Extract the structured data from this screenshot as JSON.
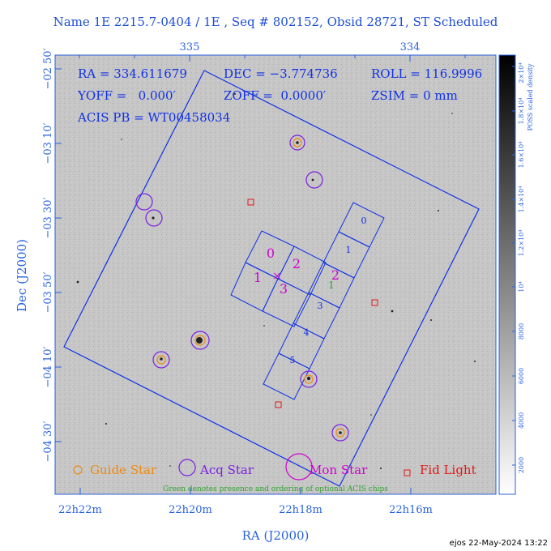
{
  "header": {
    "title": "Name 1E 2215.7-0404 / 1E , Seq # 802152, Obsid 28721, ST Scheduled"
  },
  "info": {
    "ra": "RA = 334.611679",
    "dec": "DEC = −3.774736",
    "roll": "ROLL = 116.9996",
    "yoff": "YOFF =   0.000′",
    "zoff": "ZOFF =  0.0000′",
    "zsim": "ZSIM = 0 mm",
    "acis": "ACIS PB = WT00458034"
  },
  "axes": {
    "top_ticks": [
      "335",
      "334"
    ],
    "left_ticks": [
      "−02 50′",
      "−03 10′",
      "−03 30′",
      "−03 50′",
      "−04 10′",
      "−04 30′"
    ],
    "bottom_ticks": [
      "22h22m",
      "22h20m",
      "22h18m",
      "22h16m"
    ],
    "xlabel": "RA (J2000)",
    "ylabel": "Dec (J2000)"
  },
  "colorbar": {
    "label": "POSS scaled density",
    "ticks": [
      "2000",
      "4000",
      "6000",
      "8000",
      "10⁴",
      "1.2×10⁴",
      "1.4×10⁴",
      "1.6×10⁴",
      "1.8×10⁴",
      "2×10⁴"
    ]
  },
  "chips": {
    "imaging": [
      "0",
      "1",
      "2",
      "3"
    ],
    "spectroscopy": [
      "0",
      "1",
      "2",
      "3",
      "4",
      "5"
    ],
    "optional_marker": "1"
  },
  "legend": {
    "guide": "Guide Star",
    "acq": "Acq Star",
    "mon": "Mon Star",
    "fid": "Fid Light",
    "note": "Green denotes presence and ordering of optional ACIS chips"
  },
  "footer": {
    "stamp": "ejos 22-May-2024 13:22"
  },
  "colors": {
    "axis_blue": "#2a62e0",
    "field_blue": "#1030e8",
    "chip_magenta": "#d000d0",
    "acq_purple": "#7a1fe0",
    "guide_orange": "#f08a10",
    "fid_red": "#e01818",
    "optional_green": "#30a030"
  }
}
